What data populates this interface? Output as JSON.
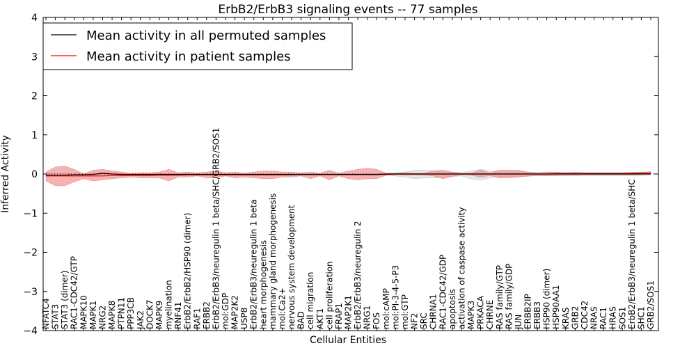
{
  "chart_data": {
    "type": "line",
    "title": "ErbB2/ErbB3 signaling events -- 77 samples",
    "xlabel": "Cellular Entities",
    "ylabel": "Inferred Activity",
    "ylim": [
      -4,
      4
    ],
    "yticks": [
      4,
      3,
      2,
      1,
      0,
      -1,
      -2,
      -3,
      -4
    ],
    "ytick_labels": [
      "4",
      "3",
      "2",
      "1",
      "0",
      "−1",
      "−2",
      "−3",
      "−4"
    ],
    "legend": {
      "position": "top-left",
      "entries": [
        {
          "label": "Mean activity in all permuted samples",
          "color": "#000000"
        },
        {
          "label": "Mean activity in patient samples",
          "color": "#ff0000"
        }
      ]
    },
    "colors": {
      "patient": "#ff0000",
      "patient_band": "#f08080",
      "permuted": "#000000",
      "permuted_band": "#bbbbbb"
    },
    "categories": [
      "NFATC4",
      "STAT3",
      "STAT3 (dimer)",
      "RAC1-CDC42/GTP",
      "MAPK10",
      "MAPK1",
      "NRG2",
      "MAPK8",
      "PTPN11",
      "PPP3CB",
      "JAK2",
      "DOCK7",
      "MAPK9",
      "myelination",
      "RNF41",
      "ErbB2/ErbB2/HSP90 (dimer)",
      "RAF1",
      "ERBB2",
      "ErbB2/ErbB3/neuregulin 1 beta/SHC/GRB2/SOS1",
      "mol:GDP",
      "MAP2K2",
      "USP8",
      "ErbB2/ErbB3/neuregulin 1 beta",
      "heart morphogenesis",
      "mammary gland morphogenesis",
      "mol:Ca2+",
      "nervous system development",
      "BAD",
      "cell migration",
      "AKT1",
      "cell proliferation",
      "FRAP1",
      "MAP2K1",
      "ErbB2/ErbB3/neuregulin 2",
      "NRG1",
      "FOS",
      "mol:cAMP",
      "mol:PI-3-4-5-P3",
      "mol:GTP",
      "NF2",
      "SRC",
      "CHRNA1",
      "RAC1-CDC42/GDP",
      "apoptosis",
      "activation of caspase activity",
      "MAPK3",
      "PRKACA",
      "CHRNE",
      "RAS family/GTP",
      "RAS family/GDP",
      "JUN",
      "ERBB2IP",
      "ERBB3",
      "HSP90 (dimer)",
      "HSP90AA1",
      "KRAS",
      "GRB2",
      "CDC42",
      "NRAS",
      "RAC1",
      "HRAS",
      "SOS1",
      "ErbB2/ErbB3/neuregulin 1 beta/SHC",
      "SHC1",
      "GRB2/SOS1"
    ],
    "series": [
      {
        "name": "Mean activity in patient samples",
        "values": [
          -0.05,
          -0.05,
          -0.05,
          -0.05,
          -0.05,
          -0.05,
          -0.05,
          -0.04,
          -0.04,
          -0.04,
          -0.04,
          -0.04,
          -0.03,
          -0.03,
          -0.03,
          -0.02,
          -0.02,
          -0.02,
          -0.02,
          -0.02,
          -0.02,
          -0.02,
          -0.02,
          -0.02,
          -0.02,
          -0.02,
          -0.02,
          -0.01,
          -0.01,
          -0.01,
          -0.01,
          -0.01,
          -0.01,
          -0.01,
          -0.01,
          -0.01,
          -0.01,
          0.0,
          0.0,
          0.0,
          0.0,
          0.0,
          0.0,
          0.0,
          0.0,
          0.0,
          0.0,
          0.0,
          0.0,
          0.0,
          0.0,
          0.0,
          0.0,
          0.0,
          0.01,
          0.01,
          0.01,
          0.01,
          0.01,
          0.01,
          0.01,
          0.01,
          0.02,
          0.02,
          0.02
        ],
        "upper": [
          0.05,
          0.18,
          0.2,
          0.12,
          0.0,
          0.1,
          0.12,
          0.08,
          0.05,
          0.02,
          0.03,
          0.03,
          0.05,
          0.12,
          0.03,
          0.05,
          0.03,
          0.05,
          0.08,
          0.03,
          0.05,
          0.02,
          0.05,
          0.08,
          0.08,
          0.05,
          0.05,
          0.03,
          0.05,
          0.02,
          0.1,
          0.02,
          0.08,
          0.12,
          0.15,
          0.12,
          0.02,
          0.02,
          0.03,
          0.02,
          0.02,
          0.08,
          0.1,
          0.05,
          0.02,
          0.02,
          0.1,
          0.03,
          0.1,
          0.1,
          0.1,
          0.05,
          0.03,
          0.05,
          0.05,
          0.03,
          0.04,
          0.03,
          0.03,
          0.03,
          0.03,
          0.03,
          0.04,
          0.05,
          0.06
        ],
        "lower": [
          -0.18,
          -0.3,
          -0.3,
          -0.2,
          -0.12,
          -0.18,
          -0.15,
          -0.12,
          -0.1,
          -0.08,
          -0.1,
          -0.1,
          -0.1,
          -0.18,
          -0.08,
          -0.08,
          -0.05,
          -0.1,
          -0.1,
          -0.05,
          -0.1,
          -0.08,
          -0.1,
          -0.12,
          -0.12,
          -0.08,
          -0.08,
          -0.05,
          -0.12,
          -0.05,
          -0.15,
          -0.05,
          -0.12,
          -0.15,
          -0.12,
          -0.12,
          -0.03,
          -0.02,
          -0.03,
          -0.03,
          -0.03,
          -0.05,
          -0.12,
          -0.06,
          -0.02,
          -0.03,
          -0.08,
          -0.04,
          -0.1,
          -0.1,
          -0.08,
          -0.05,
          -0.04,
          -0.05,
          -0.04,
          -0.03,
          -0.03,
          -0.02,
          -0.02,
          -0.02,
          -0.02,
          -0.02,
          -0.02,
          -0.01,
          0.0
        ]
      },
      {
        "name": "Mean activity in all permuted samples",
        "values": [
          -0.03,
          -0.03,
          -0.03,
          -0.02,
          -0.02,
          -0.01,
          0.02,
          0.0,
          -0.01,
          -0.01,
          -0.01,
          -0.01,
          -0.01,
          -0.01,
          -0.01,
          -0.01,
          -0.01,
          -0.01,
          -0.01,
          -0.01,
          -0.01,
          -0.01,
          -0.01,
          -0.01,
          -0.01,
          -0.01,
          -0.01,
          -0.01,
          -0.01,
          -0.01,
          -0.01,
          -0.01,
          -0.01,
          -0.01,
          -0.01,
          -0.01,
          0.0,
          0.0,
          0.0,
          0.0,
          0.0,
          0.0,
          0.0,
          0.0,
          0.0,
          0.0,
          0.0,
          0.0,
          0.0,
          0.0,
          0.0,
          0.0,
          0.0,
          0.0,
          0.0,
          0.0,
          0.0,
          0.0,
          0.0,
          0.0,
          0.0,
          0.0,
          0.0,
          0.0,
          0.0
        ],
        "upper": [
          0.02,
          0.02,
          0.02,
          0.02,
          0.02,
          0.02,
          0.04,
          0.03,
          0.02,
          0.02,
          0.02,
          0.02,
          0.02,
          0.02,
          0.02,
          0.02,
          0.02,
          0.02,
          0.02,
          0.02,
          0.02,
          0.02,
          0.02,
          0.02,
          0.02,
          0.02,
          0.02,
          0.02,
          0.02,
          0.02,
          0.02,
          0.02,
          0.02,
          0.02,
          0.02,
          0.02,
          0.02,
          0.03,
          0.05,
          0.1,
          0.1,
          0.08,
          0.05,
          0.05,
          0.03,
          0.08,
          0.12,
          0.08,
          0.05,
          0.05,
          0.05,
          0.05,
          0.03,
          0.03,
          0.03,
          0.04,
          0.05,
          0.04,
          0.04,
          0.04,
          0.04,
          0.04,
          0.04,
          0.04,
          0.04
        ],
        "lower": [
          -0.05,
          -0.05,
          -0.05,
          -0.05,
          -0.05,
          -0.04,
          -0.02,
          -0.03,
          -0.04,
          -0.04,
          -0.04,
          -0.04,
          -0.04,
          -0.04,
          -0.04,
          -0.04,
          -0.04,
          -0.04,
          -0.04,
          -0.04,
          -0.04,
          -0.04,
          -0.04,
          -0.04,
          -0.04,
          -0.04,
          -0.04,
          -0.04,
          -0.04,
          -0.04,
          -0.04,
          -0.04,
          -0.04,
          -0.04,
          -0.04,
          -0.04,
          -0.03,
          -0.05,
          -0.08,
          -0.12,
          -0.1,
          -0.1,
          -0.08,
          -0.06,
          -0.05,
          -0.12,
          -0.15,
          -0.1,
          -0.06,
          -0.06,
          -0.06,
          -0.06,
          -0.04,
          -0.04,
          -0.04,
          -0.04,
          -0.05,
          -0.04,
          -0.04,
          -0.04,
          -0.04,
          -0.04,
          -0.04,
          -0.04,
          -0.03
        ]
      }
    ]
  }
}
